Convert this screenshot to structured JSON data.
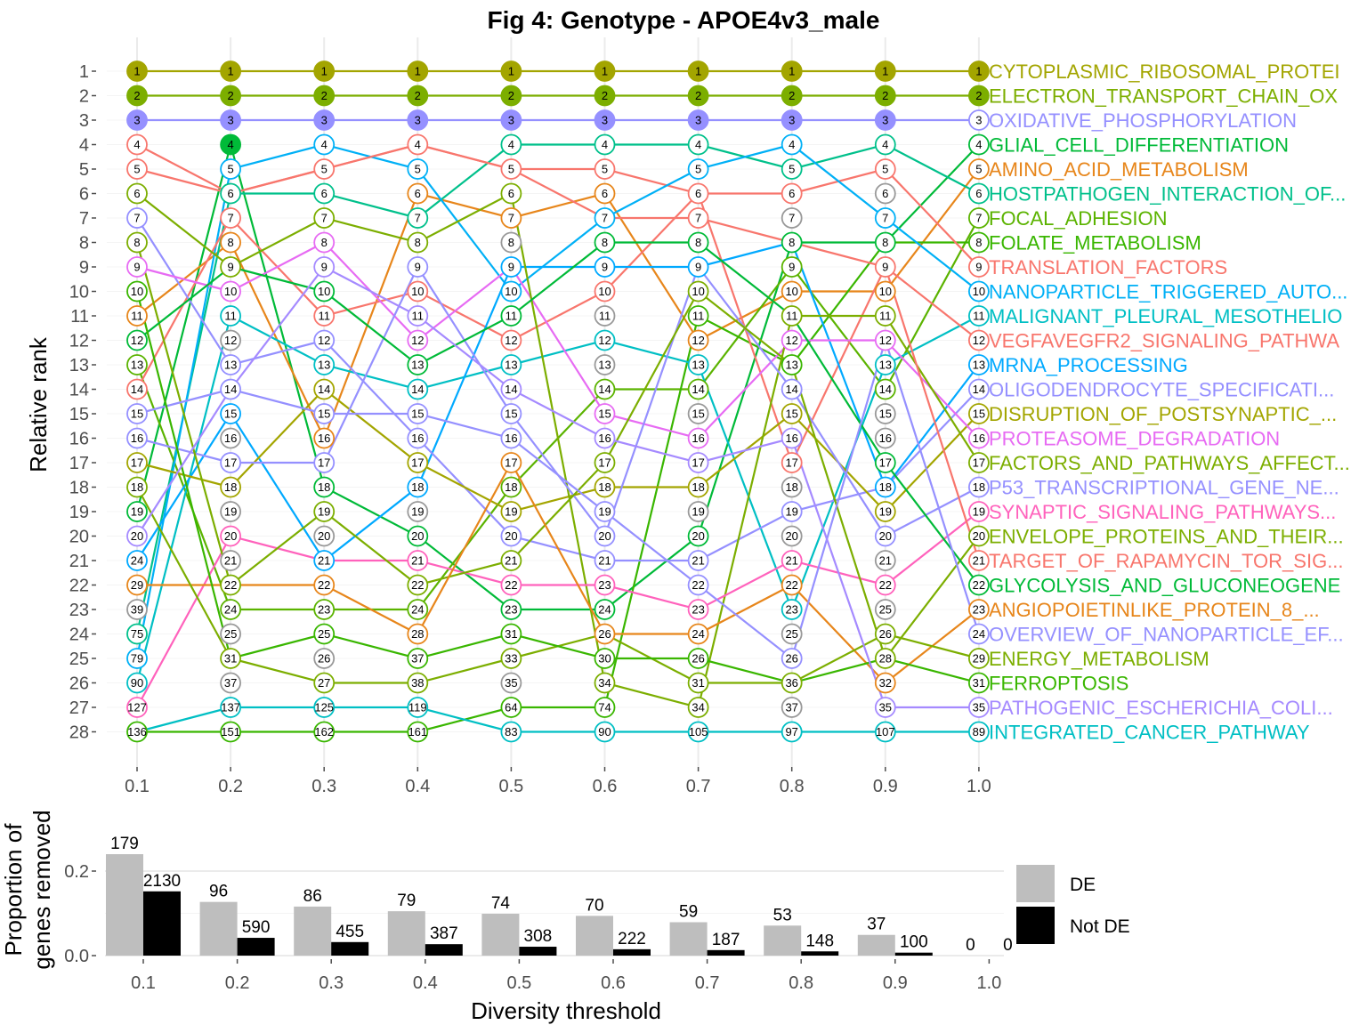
{
  "title": "Fig 4: Genotype - APOE4v3_male",
  "chart_data": [
    {
      "type": "line",
      "ylabel": "Relative rank",
      "x": [
        "0.1",
        "0.2",
        "0.3",
        "0.4",
        "0.5",
        "0.6",
        "0.7",
        "0.8",
        "0.9",
        "1.0"
      ],
      "ranks": [
        1,
        2,
        3,
        4,
        5,
        6,
        7,
        8,
        9,
        10,
        11,
        12,
        13,
        14,
        15,
        16,
        17,
        18,
        19,
        20,
        21,
        22,
        23,
        24,
        25,
        26,
        27,
        28
      ],
      "point_labels": [
        [
          1,
          2,
          3,
          4,
          5,
          6,
          7,
          8,
          9,
          10,
          11,
          12,
          13,
          14,
          15,
          16,
          17,
          18,
          19,
          20,
          24,
          29,
          39,
          75,
          79,
          90,
          127,
          136
        ],
        [
          1,
          2,
          3,
          4,
          5,
          6,
          7,
          8,
          9,
          10,
          11,
          12,
          13,
          14,
          15,
          16,
          17,
          18,
          19,
          20,
          21,
          22,
          24,
          25,
          31,
          37,
          137,
          151
        ],
        [
          1,
          2,
          3,
          4,
          5,
          6,
          7,
          8,
          9,
          10,
          11,
          12,
          13,
          14,
          15,
          16,
          17,
          18,
          19,
          20,
          21,
          22,
          23,
          25,
          26,
          27,
          125,
          162
        ],
        [
          1,
          2,
          3,
          4,
          5,
          6,
          7,
          8,
          9,
          10,
          11,
          12,
          13,
          14,
          15,
          16,
          17,
          18,
          19,
          20,
          21,
          22,
          24,
          28,
          37,
          38,
          119,
          161
        ],
        [
          1,
          2,
          3,
          4,
          5,
          6,
          7,
          8,
          9,
          10,
          11,
          12,
          13,
          14,
          15,
          16,
          17,
          18,
          19,
          20,
          21,
          22,
          23,
          31,
          33,
          35,
          64,
          83
        ],
        [
          1,
          2,
          3,
          4,
          5,
          6,
          7,
          8,
          9,
          10,
          11,
          12,
          13,
          14,
          15,
          16,
          17,
          18,
          19,
          20,
          21,
          23,
          24,
          26,
          30,
          34,
          74,
          90
        ],
        [
          1,
          2,
          3,
          4,
          5,
          6,
          7,
          8,
          9,
          10,
          11,
          12,
          13,
          14,
          15,
          16,
          17,
          18,
          19,
          20,
          21,
          22,
          23,
          24,
          26,
          31,
          34,
          105
        ],
        [
          1,
          2,
          3,
          4,
          5,
          6,
          7,
          8,
          9,
          10,
          11,
          12,
          13,
          14,
          15,
          16,
          17,
          18,
          19,
          20,
          21,
          22,
          23,
          25,
          26,
          36,
          37,
          97
        ],
        [
          1,
          2,
          3,
          4,
          5,
          6,
          7,
          8,
          9,
          10,
          11,
          12,
          13,
          14,
          15,
          16,
          17,
          18,
          19,
          20,
          21,
          22,
          25,
          26,
          28,
          32,
          35,
          107
        ],
        [
          1,
          2,
          3,
          4,
          5,
          6,
          7,
          8,
          9,
          10,
          11,
          12,
          13,
          14,
          15,
          16,
          17,
          18,
          19,
          20,
          21,
          22,
          23,
          24,
          29,
          31,
          35,
          89
        ]
      ],
      "filled_points": [
        {
          "x": "0.1",
          "ranks": [
            1,
            2,
            3
          ]
        },
        {
          "x": "0.2",
          "ranks": [
            1,
            2,
            3,
            4
          ]
        },
        {
          "x": "0.3",
          "ranks": [
            1,
            2,
            3
          ]
        },
        {
          "x": "0.4",
          "ranks": [
            1,
            2,
            3
          ]
        },
        {
          "x": "0.5",
          "ranks": [
            1,
            2,
            3
          ]
        },
        {
          "x": "0.6",
          "ranks": [
            1,
            2,
            3
          ]
        },
        {
          "x": "0.7",
          "ranks": [
            1,
            2,
            3
          ]
        },
        {
          "x": "0.8",
          "ranks": [
            1,
            2,
            3
          ]
        },
        {
          "x": "0.9",
          "ranks": [
            1,
            2,
            3
          ]
        },
        {
          "x": "1.0",
          "ranks": [
            1,
            2
          ]
        }
      ],
      "series": [
        {
          "name": "CYTOPLASMIC_RIBOSOMAL_PROTEI",
          "color": "#a3a500",
          "ranks": [
            1,
            1,
            1,
            1,
            1,
            1,
            1,
            1,
            1,
            1
          ]
        },
        {
          "name": "ELECTRON_TRANSPORT_CHAIN_OX",
          "color": "#7cae00",
          "ranks": [
            2,
            2,
            2,
            2,
            2,
            2,
            2,
            2,
            2,
            2
          ]
        },
        {
          "name": "OXIDATIVE_PHOSPHORYLATION",
          "color": "#9590ff",
          "ranks": [
            3,
            3,
            3,
            3,
            3,
            3,
            3,
            3,
            3,
            3
          ]
        },
        {
          "name": "GLIAL_CELL_DIFFERENTIATION",
          "color": "#00ba38",
          "ranks": [
            19,
            4,
            18,
            20,
            23,
            23,
            20,
            8,
            8,
            4
          ]
        },
        {
          "name": "AMINO_ACID_METABOLISM",
          "color": "#e7861b",
          "ranks": [
            11,
            8,
            16,
            6,
            7,
            6,
            12,
            10,
            10,
            5
          ]
        },
        {
          "name": "HOSTPATHOGEN_INTERACTION_OF...",
          "color": "#00c08b",
          "ranks": [
            24,
            6,
            6,
            7,
            4,
            4,
            4,
            5,
            4,
            6
          ]
        },
        {
          "name": "FOCAL_ADHESION",
          "color": "#5bb300",
          "ranks": [
            13,
            23,
            23,
            23,
            18,
            14,
            14,
            9,
            14,
            7
          ]
        },
        {
          "name": "FOLATE_METABOLISM",
          "color": "#39b600",
          "ranks": [
            28,
            28,
            28,
            28,
            27,
            27,
            11,
            13,
            8,
            8
          ]
        },
        {
          "name": "TRANSLATION_FACTORS",
          "color": "#f8766d",
          "ranks": [
            5,
            6,
            5,
            4,
            5,
            5,
            6,
            6,
            5,
            9
          ]
        },
        {
          "name": "NANOPARTICLE_TRIGGERED_AUTO...",
          "color": "#00b0f6",
          "ranks": [
            25,
            5,
            4,
            5,
            10,
            7,
            5,
            4,
            7,
            10
          ]
        },
        {
          "name": "MALIGNANT_PLEURAL_MESOTHELIO",
          "color": "#00bfc4",
          "ranks": [
            26,
            11,
            13,
            14,
            13,
            12,
            13,
            23,
            13,
            11
          ]
        },
        {
          "name": "VEGFAVEGFR2_SIGNALING_PATHWA",
          "color": "#f8766d",
          "ranks": [
            14,
            7,
            11,
            10,
            12,
            10,
            6,
            17,
            9,
            12
          ]
        },
        {
          "name": "MRNA_PROCESSING",
          "color": "#00a9ff",
          "ranks": [
            21,
            15,
            21,
            18,
            9,
            9,
            9,
            8,
            18,
            13
          ]
        },
        {
          "name": "OLIGODENDROCYTE_SPECIFICATI...",
          "color": "#9590ff",
          "ranks": [
            7,
            13,
            12,
            16,
            20,
            21,
            21,
            19,
            18,
            14
          ]
        },
        {
          "name": "DISRUPTION_OF_POSTSYNAPTIC_...",
          "color": "#a3a500",
          "ranks": [
            17,
            18,
            14,
            17,
            19,
            18,
            18,
            15,
            19,
            15
          ]
        },
        {
          "name": "PROTEASOME_DEGRADATION",
          "color": "#e76bf3",
          "ranks": [
            9,
            10,
            8,
            12,
            9,
            15,
            16,
            12,
            12,
            16
          ]
        },
        {
          "name": "FACTORS_AND_PATHWAYS_AFFECT...",
          "color": "#7cae00",
          "ranks": [
            6,
            9,
            7,
            8,
            6,
            26,
            27,
            11,
            11,
            17
          ]
        },
        {
          "name": "P53_TRANSCRIPTIONAL_GENE_NE...",
          "color": "#9590ff",
          "ranks": [
            16,
            17,
            17,
            9,
            15,
            20,
            9,
            14,
            20,
            18
          ]
        },
        {
          "name": "SYNAPTIC_SIGNALING_PATHWAYS...",
          "color": "#ff62bc",
          "ranks": [
            27,
            20,
            21,
            21,
            22,
            22,
            23,
            21,
            22,
            19
          ]
        },
        {
          "name": "ENVELOPE_PROTEINS_AND_THEIR...",
          "color": "#7cae00",
          "ranks": [
            8,
            22,
            19,
            22,
            21,
            17,
            10,
            13,
            25,
            20
          ]
        },
        {
          "name": "TARGET_OF_RAPAMYCIN_TOR_SIG...",
          "color": "#f8766d",
          "ranks": [
            4,
            6,
            5,
            4,
            5,
            7,
            7,
            8,
            9,
            21
          ]
        },
        {
          "name": "GLYCOLYSIS_AND_GLUCONEOGENE",
          "color": "#00ba38",
          "ranks": [
            12,
            9,
            10,
            13,
            11,
            8,
            8,
            11,
            17,
            22
          ]
        },
        {
          "name": "ANGIOPOIETINLIKE_PROTEIN_8_...",
          "color": "#e7861b",
          "ranks": [
            22,
            22,
            22,
            24,
            17,
            24,
            24,
            22,
            26,
            23
          ]
        },
        {
          "name": "OVERVIEW_OF_NANOPARTICLE_EF...",
          "color": "#9590ff",
          "ranks": [
            15,
            14,
            15,
            15,
            16,
            19,
            22,
            25,
            12,
            24
          ]
        },
        {
          "name": "ENERGY_METABOLISM",
          "color": "#7cae00",
          "ranks": [
            18,
            25,
            26,
            26,
            25,
            24,
            26,
            26,
            24,
            25
          ]
        },
        {
          "name": "FERROPTOSIS",
          "color": "#39b600",
          "ranks": [
            10,
            25,
            24,
            25,
            24,
            25,
            25,
            26,
            25,
            26
          ]
        },
        {
          "name": "PATHOGENIC_ESCHERICHIA_COLI...",
          "color": "#a58aff",
          "ranks": [
            20,
            14,
            9,
            11,
            14,
            16,
            17,
            16,
            27,
            27
          ]
        },
        {
          "name": "INTEGRATED_CANCER_PATHWAY",
          "color": "#00bfc4",
          "ranks": [
            28,
            27,
            27,
            27,
            28,
            28,
            28,
            28,
            28,
            28
          ]
        }
      ]
    },
    {
      "type": "bar",
      "xlabel": "Diversity threshold",
      "ylabel": "Proportion of genes removed",
      "ylabel_lines": [
        "Proportion of",
        "genes removed"
      ],
      "categories": [
        "0.1",
        "0.2",
        "0.3",
        "0.4",
        "0.5",
        "0.6",
        "0.7",
        "0.8",
        "0.9",
        "1.0"
      ],
      "yticks": [
        "0.0",
        "0.2"
      ],
      "ylim": [
        0,
        0.25
      ],
      "series": [
        {
          "name": "DE",
          "color": "#bebebe",
          "values": [
            0.24,
            0.127,
            0.116,
            0.105,
            0.099,
            0.094,
            0.079,
            0.071,
            0.049,
            0.0
          ],
          "labels": [
            "179",
            "96",
            "86",
            "79",
            "74",
            "70",
            "59",
            "53",
            "37",
            "0"
          ]
        },
        {
          "name": "Not DE",
          "color": "#000000",
          "values": [
            0.152,
            0.042,
            0.032,
            0.027,
            0.021,
            0.015,
            0.013,
            0.01,
            0.007,
            0.0
          ],
          "labels": [
            "2130",
            "590",
            "455",
            "387",
            "308",
            "222",
            "187",
            "148",
            "100",
            "0"
          ]
        }
      ]
    }
  ]
}
